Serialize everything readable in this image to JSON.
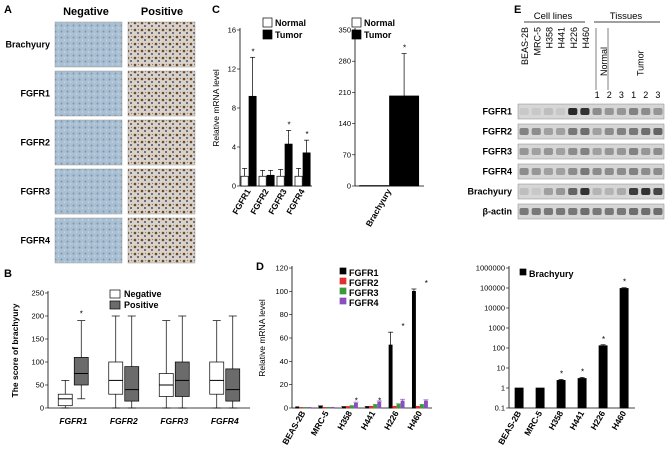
{
  "panels": {
    "A": {
      "label": "A",
      "col_headers": [
        "Negative",
        "Positive"
      ],
      "rows": [
        "Brachyury",
        "FGFR1",
        "FGFR2",
        "FGFR3",
        "FGFR4"
      ]
    },
    "E": {
      "label": "E",
      "group_labels": [
        "Cell lines",
        "Tissues"
      ],
      "cell_lines": [
        "BEAS-2B",
        "MRC-5",
        "H358",
        "H441",
        "H226",
        "H460"
      ],
      "tissue_groups": [
        "Normal",
        "Tumor"
      ],
      "tissue_numbers": [
        "1",
        "2",
        "3",
        "1",
        "2",
        "3"
      ],
      "blots": [
        "FGFR1",
        "FGFR2",
        "FGFR3",
        "FGFR4",
        "Brachyury",
        "β-actin"
      ]
    }
  },
  "chart_data": [
    {
      "id": "B",
      "label": "B",
      "type": "box",
      "ylabel": "The score of brachyury",
      "ylim": [
        0,
        250
      ],
      "yticks": [
        0,
        50,
        100,
        150,
        200,
        250
      ],
      "categories": [
        "FGFR1",
        "FGFR2",
        "FGFR3",
        "FGFR4"
      ],
      "legend": [
        "Negative",
        "Positive"
      ],
      "colors": {
        "Negative": "#ffffff",
        "Positive": "#6b6b6b"
      },
      "boxes": {
        "Negative": [
          {
            "min": 0,
            "q1": 5,
            "median": 20,
            "q3": 30,
            "max": 60
          },
          {
            "min": 0,
            "q1": 30,
            "median": 60,
            "q3": 100,
            "max": 200
          },
          {
            "min": 0,
            "q1": 25,
            "median": 50,
            "q3": 75,
            "max": 190
          },
          {
            "min": 0,
            "q1": 30,
            "median": 60,
            "q3": 100,
            "max": 190
          }
        ],
        "Positive": [
          {
            "min": 20,
            "q1": 50,
            "median": 75,
            "q3": 110,
            "max": 190
          },
          {
            "min": 0,
            "q1": 15,
            "median": 40,
            "q3": 90,
            "max": 200
          },
          {
            "min": 0,
            "q1": 25,
            "median": 60,
            "q3": 100,
            "max": 200
          },
          {
            "min": 0,
            "q1": 15,
            "median": 40,
            "q3": 85,
            "max": 200
          }
        ]
      },
      "significant": [
        "FGFR1"
      ],
      "sig_marker": "*"
    },
    {
      "id": "C1",
      "label": "C",
      "type": "bar",
      "ylabel": "Relative mRNA level",
      "ylim": [
        0,
        16
      ],
      "yticks": [
        0,
        4,
        8,
        12,
        16
      ],
      "categories": [
        "FGFR1",
        "FGFR2",
        "FGFR3",
        "FGFR4"
      ],
      "series": [
        {
          "name": "Normal",
          "color": "#ffffff",
          "values": [
            1,
            1,
            1,
            1
          ],
          "errors": [
            0.8,
            0.6,
            0.7,
            0.8
          ]
        },
        {
          "name": "Tumor",
          "color": "#000000",
          "values": [
            9.2,
            1.1,
            4.3,
            3.4
          ],
          "errors": [
            4.0,
            0.5,
            1.4,
            1.3
          ]
        }
      ],
      "significant": [
        0,
        2,
        3
      ],
      "sig_marker": "*"
    },
    {
      "id": "C2",
      "type": "bar",
      "ylim": [
        0,
        350
      ],
      "yticks": [
        0,
        70,
        140,
        210,
        280,
        350
      ],
      "categories": [
        "Brachyury"
      ],
      "series": [
        {
          "name": "Normal",
          "color": "#ffffff",
          "values": [
            1
          ],
          "errors": [
            0
          ]
        },
        {
          "name": "Tumor",
          "color": "#000000",
          "values": [
            202
          ],
          "errors": [
            95
          ]
        }
      ],
      "significant": [
        0
      ],
      "sig_marker": "*"
    },
    {
      "id": "D1",
      "label": "D",
      "type": "bar",
      "ylabel": "Relative mRNA level",
      "ylim": [
        0,
        120
      ],
      "yticks": [
        0,
        20,
        40,
        60,
        80,
        100,
        120
      ],
      "categories": [
        "BEAS-2B",
        "MRC-5",
        "H358",
        "H441",
        "H226",
        "H460"
      ],
      "series": [
        {
          "name": "FGFR1",
          "color": "#000000",
          "values": [
            1,
            1.5,
            1,
            1,
            54,
            100
          ],
          "errors": [
            0,
            0.3,
            0.2,
            0.3,
            11,
            2
          ]
        },
        {
          "name": "FGFR2",
          "color": "#e03030",
          "values": [
            0.5,
            0.5,
            1,
            1.2,
            1.2,
            1.2
          ],
          "errors": [
            0,
            0,
            0.3,
            0.3,
            0.3,
            0.3
          ]
        },
        {
          "name": "FGFR3",
          "color": "#3a9a3a",
          "values": [
            0.5,
            0.6,
            1.5,
            2.5,
            3,
            2.5
          ],
          "errors": [
            0,
            0,
            0.5,
            0.6,
            0.6,
            0.6
          ]
        },
        {
          "name": "FGFR4",
          "color": "#8a4fbf",
          "values": [
            0.5,
            0.6,
            4,
            5,
            6,
            6
          ],
          "errors": [
            0,
            0,
            1,
            1,
            1.5,
            1
          ]
        }
      ],
      "significant": [
        2,
        3,
        4,
        5
      ],
      "sig_marker": "*"
    },
    {
      "id": "D2",
      "type": "bar",
      "scale": "log",
      "ylim": [
        0.1,
        1000000
      ],
      "yticks": [
        "0.1",
        "1",
        "10",
        "100",
        "1000",
        "10000",
        "100000",
        "1000000"
      ],
      "categories": [
        "BEAS-2B",
        "MRC-5",
        "H358",
        "H441",
        "H226",
        "H460"
      ],
      "series": [
        {
          "name": "Brachyury",
          "color": "#000000",
          "values": [
            1,
            1,
            2.4,
            3,
            130,
            95000
          ],
          "errors": [
            0,
            0,
            0.3,
            0.4,
            15,
            8000
          ]
        }
      ],
      "significant": [
        2,
        3,
        4,
        5
      ],
      "sig_marker": "*"
    }
  ]
}
